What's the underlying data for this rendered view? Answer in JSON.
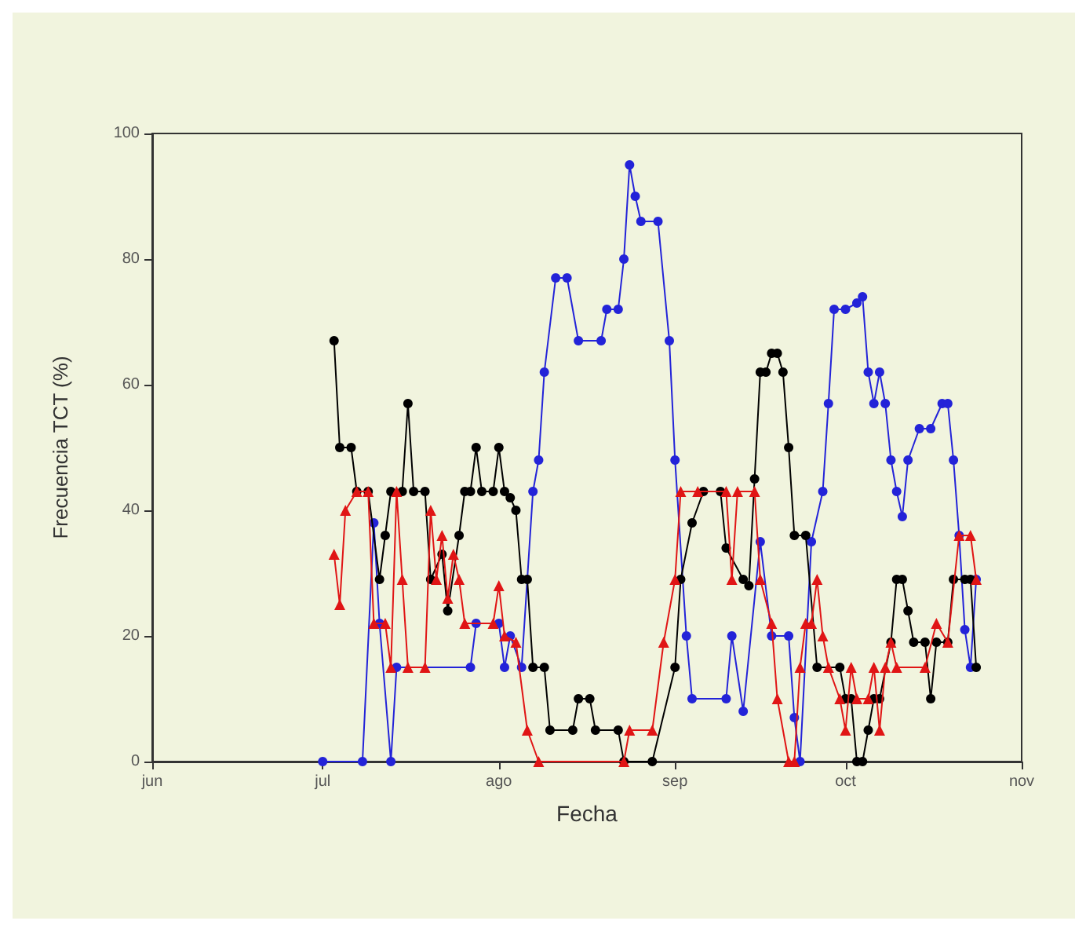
{
  "chart_data": {
    "type": "line",
    "xlabel": "Fecha",
    "ylabel": "Frecuencia TCT (%)",
    "xlim": [
      "--06-01",
      "--11-01"
    ],
    "xticks": [
      {
        "value": "--06-01",
        "label": "jun"
      },
      {
        "value": "--07-01",
        "label": "jul"
      },
      {
        "value": "--08-01",
        "label": "ago"
      },
      {
        "value": "--09-01",
        "label": "sep"
      },
      {
        "value": "--10-01",
        "label": "oct"
      },
      {
        "value": "--11-01",
        "label": "nov"
      }
    ],
    "ylim": [
      0,
      100
    ],
    "yticks": [
      0,
      20,
      40,
      60,
      80,
      100
    ],
    "grid": false,
    "series": [
      {
        "color": "#2323d8",
        "marker": "circle",
        "x": [
          "--07-01",
          "--07-08",
          "--07-10",
          "--07-11",
          "--07-13",
          "--07-14",
          "--07-27",
          "--07-28",
          "--08-01",
          "--08-02",
          "--08-03",
          "--08-05",
          "--08-07",
          "--08-08",
          "--08-09",
          "--08-11",
          "--08-13",
          "--08-15",
          "--08-19",
          "--08-20",
          "--08-22",
          "--08-23",
          "--08-24",
          "--08-25",
          "--08-26",
          "--08-29",
          "--08-31",
          "--09-01",
          "--09-03",
          "--09-04",
          "--09-10",
          "--09-11",
          "--09-13",
          "--09-16",
          "--09-18",
          "--09-21",
          "--09-22",
          "--09-23",
          "--09-25",
          "--09-27",
          "--09-28",
          "--09-29",
          "--10-01",
          "--10-03",
          "--10-04",
          "--10-05",
          "--10-06",
          "--10-07",
          "--10-08",
          "--10-09",
          "--10-10",
          "--10-11",
          "--10-12",
          "--10-14",
          "--10-16",
          "--10-18",
          "--10-19",
          "--10-20",
          "--10-21",
          "--10-22",
          "--10-23",
          "--10-24"
        ],
        "values": [
          0,
          0,
          38,
          22,
          0,
          15,
          15,
          22,
          22,
          15,
          20,
          15,
          43,
          48,
          62,
          77,
          77,
          67,
          67,
          72,
          72,
          80,
          95,
          90,
          86,
          86,
          67,
          48,
          20,
          10,
          10,
          20,
          8,
          35,
          20,
          20,
          7,
          0,
          35,
          43,
          57,
          72,
          72,
          73,
          74,
          62,
          57,
          62,
          57,
          48,
          43,
          39,
          48,
          53,
          53,
          57,
          57,
          48,
          36,
          21,
          15,
          29
        ]
      },
      {
        "color": "#000000",
        "marker": "circle",
        "x": [
          "--07-03",
          "--07-04",
          "--07-06",
          "--07-07",
          "--07-09",
          "--07-11",
          "--07-12",
          "--07-13",
          "--07-15",
          "--07-16",
          "--07-17",
          "--07-19",
          "--07-20",
          "--07-22",
          "--07-23",
          "--07-25",
          "--07-26",
          "--07-27",
          "--07-28",
          "--07-29",
          "--07-31",
          "--08-01",
          "--08-02",
          "--08-03",
          "--08-04",
          "--08-05",
          "--08-06",
          "--08-07",
          "--08-09",
          "--08-10",
          "--08-14",
          "--08-15",
          "--08-17",
          "--08-18",
          "--08-22",
          "--08-23",
          "--08-28",
          "--09-01",
          "--09-02",
          "--09-04",
          "--09-06",
          "--09-09",
          "--09-10",
          "--09-13",
          "--09-14",
          "--09-15",
          "--09-16",
          "--09-17",
          "--09-18",
          "--09-19",
          "--09-20",
          "--09-21",
          "--09-22",
          "--09-24",
          "--09-26",
          "--09-30",
          "--10-01",
          "--10-02",
          "--10-03",
          "--10-04",
          "--10-05",
          "--10-06",
          "--10-07",
          "--10-09",
          "--10-10",
          "--10-11",
          "--10-12",
          "--10-13",
          "--10-15",
          "--10-16",
          "--10-17",
          "--10-19",
          "--10-20",
          "--10-22",
          "--10-23",
          "--10-24"
        ],
        "values": [
          67,
          50,
          50,
          43,
          43,
          29,
          36,
          43,
          43,
          57,
          43,
          43,
          29,
          33,
          24,
          36,
          43,
          43,
          50,
          43,
          43,
          50,
          43,
          42,
          40,
          29,
          29,
          15,
          15,
          5,
          5,
          10,
          10,
          5,
          5,
          0,
          0,
          15,
          29,
          38,
          43,
          43,
          34,
          29,
          28,
          45,
          62,
          62,
          65,
          65,
          62,
          50,
          36,
          36,
          15,
          15,
          10,
          10,
          0,
          0,
          5,
          10,
          10,
          19,
          29,
          29,
          24,
          19,
          19,
          10,
          19,
          19,
          29,
          29,
          29,
          15
        ]
      },
      {
        "color": "#e01515",
        "marker": "triangle",
        "x": [
          "--07-03",
          "--07-04",
          "--07-05",
          "--07-07",
          "--07-09",
          "--07-10",
          "--07-12",
          "--07-13",
          "--07-14",
          "--07-15",
          "--07-16",
          "--07-19",
          "--07-20",
          "--07-21",
          "--07-22",
          "--07-23",
          "--07-24",
          "--07-25",
          "--07-26",
          "--07-31",
          "--08-01",
          "--08-02",
          "--08-04",
          "--08-06",
          "--08-08",
          "--08-23",
          "--08-24",
          "--08-28",
          "--08-30",
          "--09-01",
          "--09-02",
          "--09-05",
          "--09-10",
          "--09-11",
          "--09-12",
          "--09-15",
          "--09-16",
          "--09-18",
          "--09-19",
          "--09-21",
          "--09-22",
          "--09-23",
          "--09-24",
          "--09-25",
          "--09-26",
          "--09-27",
          "--09-28",
          "--09-30",
          "--10-01",
          "--10-02",
          "--10-03",
          "--10-05",
          "--10-06",
          "--10-07",
          "--10-08",
          "--10-09",
          "--10-10",
          "--10-15",
          "--10-17",
          "--10-19",
          "--10-21",
          "--10-23",
          "--10-24"
        ],
        "values": [
          33,
          25,
          40,
          43,
          43,
          22,
          22,
          15,
          43,
          29,
          15,
          15,
          40,
          29,
          36,
          26,
          33,
          29,
          22,
          22,
          28,
          20,
          19,
          5,
          0,
          0,
          5,
          5,
          19,
          29,
          43,
          43,
          43,
          29,
          43,
          43,
          29,
          22,
          10,
          0,
          0,
          15,
          22,
          22,
          29,
          20,
          15,
          10,
          5,
          15,
          10,
          10,
          15,
          5,
          15,
          19,
          15,
          15,
          22,
          19,
          36,
          36,
          29
        ]
      }
    ]
  }
}
